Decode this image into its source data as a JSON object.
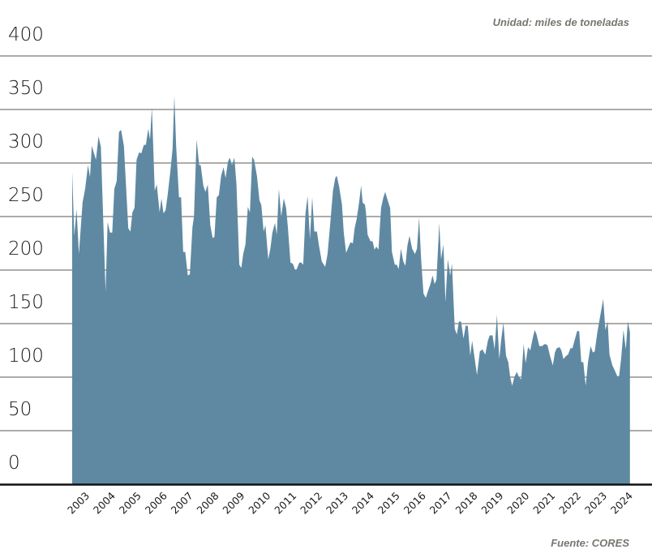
{
  "unit_note": "Unidad: miles de toneladas",
  "source_note": "Fuente: CORES",
  "chart_data": {
    "type": "area",
    "title": "",
    "xlabel": "",
    "ylabel": "",
    "ylim": [
      0,
      400
    ],
    "yticks": [
      0,
      50,
      100,
      150,
      200,
      250,
      300,
      350,
      400
    ],
    "xlim": [
      2003.0,
      2024.58
    ],
    "xtick_labels": [
      "2003",
      "2004",
      "2005",
      "2006",
      "2007",
      "2008",
      "2009",
      "2010",
      "2011",
      "2012",
      "2013",
      "2014",
      "2015",
      "2016",
      "2017",
      "2018",
      "2019",
      "2020",
      "2021",
      "2022",
      "2023",
      "2024"
    ],
    "grid": true,
    "legend": "none",
    "fill_color": "#5f89a2",
    "grid_color": "#7d7b73",
    "x": [
      2003.0,
      2003.08,
      2003.17,
      2003.26,
      2003.4,
      2003.5,
      2003.61,
      2003.69,
      2003.76,
      2003.92,
      2004.02,
      2004.11,
      2004.18,
      2004.29,
      2004.37,
      2004.46,
      2004.55,
      2004.63,
      2004.72,
      2004.81,
      2004.89,
      2005.0,
      2005.17,
      2005.25,
      2005.33,
      2005.41,
      2005.49,
      2005.59,
      2005.67,
      2005.77,
      2005.85,
      2005.94,
      2006.01,
      2006.08,
      2006.19,
      2006.27,
      2006.38,
      2006.45,
      2006.53,
      2006.61,
      2006.69,
      2006.79,
      2006.88,
      2006.95,
      2007.02,
      2007.13,
      2007.21,
      2007.29,
      2007.37,
      2007.47,
      2007.55,
      2007.65,
      2007.71,
      2007.81,
      2007.91,
      2007.97,
      2008.07,
      2008.15,
      2008.24,
      2008.34,
      2008.43,
      2008.5,
      2008.59,
      2008.67,
      2008.76,
      2008.85,
      2008.93,
      2009.02,
      2009.09,
      2009.18,
      2009.27,
      2009.35,
      2009.46,
      2009.54,
      2009.61,
      2009.7,
      2009.79,
      2009.87,
      2009.96,
      2010.03,
      2010.14,
      2010.24,
      2010.31,
      2010.4,
      2010.47,
      2010.58,
      2010.66,
      2010.74,
      2010.84,
      2010.91,
      2010.99,
      2011.08,
      2011.18,
      2011.27,
      2011.34,
      2011.44,
      2011.53,
      2011.62,
      2011.68,
      2011.78,
      2011.86,
      2011.93,
      2012.02,
      2012.1,
      2012.19,
      2012.28,
      2012.36,
      2012.46,
      2012.54,
      2012.65,
      2012.78,
      2012.87,
      2012.98,
      2013.08,
      2013.17,
      2013.23,
      2013.32,
      2013.43,
      2013.5,
      2013.59,
      2013.67,
      2013.76,
      2013.85,
      2013.92,
      2014.0,
      2014.09,
      2014.17,
      2014.23,
      2014.32,
      2014.35,
      2014.42,
      2014.53,
      2014.61,
      2014.69,
      2014.76,
      2014.84,
      2014.94,
      2015.03,
      2015.1,
      2015.2,
      2015.29,
      2015.36,
      2015.47,
      2015.55,
      2015.62,
      2015.71,
      2015.8,
      2015.88,
      2015.96,
      2016.04,
      2016.14,
      2016.25,
      2016.33,
      2016.41,
      2016.49,
      2016.58,
      2016.67,
      2016.75,
      2016.85,
      2016.93,
      2017.01,
      2017.08,
      2017.19,
      2017.26,
      2017.35,
      2017.43,
      2017.52,
      2017.61,
      2017.68,
      2017.79,
      2017.87,
      2017.95,
      2018.03,
      2018.13,
      2018.21,
      2018.29,
      2018.39,
      2018.46,
      2018.55,
      2018.65,
      2018.76,
      2018.86,
      2018.97,
      2019.07,
      2019.14,
      2019.25,
      2019.33,
      2019.42,
      2019.51,
      2019.59,
      2019.67,
      2019.77,
      2019.86,
      2019.93,
      2020.01,
      2020.09,
      2020.19,
      2020.27,
      2020.36,
      2020.45,
      2020.53,
      2020.62,
      2020.71,
      2020.8,
      2020.88,
      2020.95,
      2021.06,
      2021.16,
      2021.27,
      2021.37,
      2021.47,
      2021.58,
      2021.66,
      2021.73,
      2021.84,
      2021.91,
      2021.99,
      2022.1,
      2022.17,
      2022.26,
      2022.34,
      2022.44,
      2022.52,
      2022.6,
      2022.68,
      2022.76,
      2022.85,
      2022.94,
      2023.04,
      2023.13,
      2023.2,
      2023.3,
      2023.41,
      2023.53,
      2023.61,
      2023.7,
      2023.77,
      2023.88,
      2023.98,
      2024.07,
      2024.14,
      2024.22,
      2024.31,
      2024.4,
      2024.48,
      2024.56
    ],
    "values": [
      292,
      232,
      257,
      215,
      263,
      276,
      298,
      287,
      316,
      303,
      325,
      315,
      263,
      180,
      245,
      235,
      235,
      276,
      283,
      329,
      331,
      316,
      239,
      236,
      254,
      258,
      303,
      310,
      309,
      317,
      317,
      332,
      322,
      352,
      274,
      280,
      254,
      267,
      253,
      256,
      270,
      291,
      313,
      363,
      316,
      268,
      268,
      217,
      217,
      195,
      196,
      240,
      250,
      322,
      298,
      298,
      279,
      273,
      280,
      242,
      230,
      231,
      268,
      270,
      288,
      296,
      286,
      301,
      305,
      298,
      305,
      280,
      205,
      202,
      215,
      224,
      259,
      254,
      306,
      303,
      288,
      265,
      261,
      236,
      242,
      210,
      220,
      235,
      244,
      233,
      276,
      250,
      267,
      258,
      240,
      207,
      206,
      200,
      201,
      207,
      207,
      205,
      253,
      269,
      229,
      268,
      236,
      236,
      223,
      208,
      203,
      215,
      245,
      274,
      286,
      288,
      278,
      261,
      235,
      216,
      221,
      226,
      225,
      239,
      248,
      263,
      279,
      263,
      261,
      255,
      233,
      227,
      227,
      219,
      222,
      219,
      258,
      268,
      273,
      265,
      258,
      217,
      205,
      205,
      201,
      220,
      208,
      204,
      223,
      232,
      220,
      215,
      220,
      249,
      210,
      178,
      174,
      180,
      187,
      195,
      187,
      191,
      244,
      210,
      224,
      170,
      210,
      195,
      206,
      145,
      140,
      152,
      152,
      136,
      148,
      148,
      120,
      134,
      119,
      102,
      124,
      126,
      121,
      134,
      139,
      139,
      126,
      158,
      117,
      136,
      151,
      120,
      114,
      100,
      92,
      100,
      105,
      100,
      98,
      131,
      113,
      128,
      125,
      136,
      144,
      140,
      129,
      129,
      131,
      130,
      120,
      111,
      123,
      127,
      128,
      125,
      117,
      120,
      121,
      127,
      127,
      136,
      143,
      143,
      114,
      114,
      92,
      114,
      129,
      123,
      124,
      142,
      157,
      173,
      144,
      152,
      121,
      111,
      106,
      101,
      101,
      117,
      144,
      126,
      152,
      142
    ]
  }
}
